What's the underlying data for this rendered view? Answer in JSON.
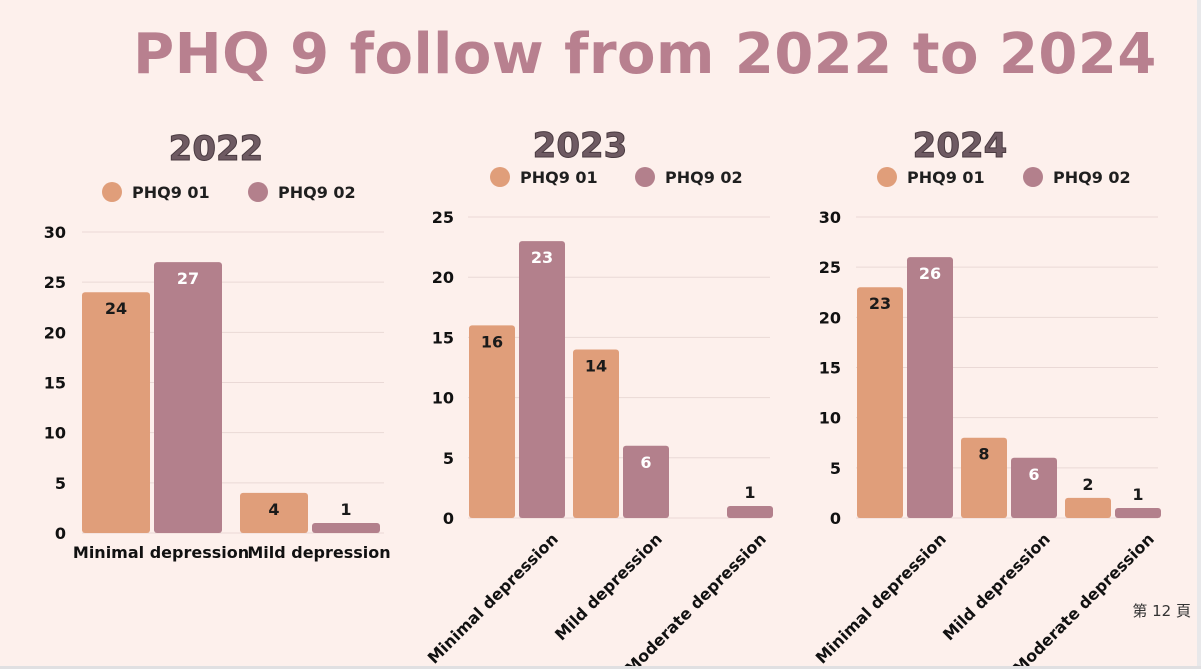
{
  "title": "PHQ 9 follow from 2022 to 2024",
  "page_number": "第 12 頁",
  "colors": {
    "series1": "#e09e7a",
    "series2": "#b3808c",
    "grid": "#ead9d6"
  },
  "chart_data": [
    {
      "type": "bar",
      "title": "2022",
      "categories": [
        "Minimal depression",
        "Mild depression"
      ],
      "series": [
        {
          "name": "PHQ9 01",
          "values": [
            24,
            4
          ]
        },
        {
          "name": "PHQ9 02",
          "values": [
            27,
            1
          ]
        }
      ],
      "ylim": [
        0,
        30
      ],
      "yticks": [
        0,
        5,
        10,
        15,
        20,
        25,
        30
      ],
      "grid": true,
      "legend": "top",
      "xlabel": "",
      "ylabel": ""
    },
    {
      "type": "bar",
      "title": "2023",
      "categories": [
        "Minimal depression",
        "Mild depression",
        "Moderate depression"
      ],
      "series": [
        {
          "name": "PHQ9 01",
          "values": [
            16,
            14,
            0
          ]
        },
        {
          "name": "PHQ9 02",
          "values": [
            23,
            6,
            1
          ]
        }
      ],
      "ylim": [
        0,
        25
      ],
      "yticks": [
        0,
        5,
        10,
        15,
        20,
        25
      ],
      "grid": true,
      "legend": "top",
      "xlabel": "",
      "ylabel": ""
    },
    {
      "type": "bar",
      "title": "2024",
      "categories": [
        "Minimal depression",
        "Mild depression",
        "Moderate depression"
      ],
      "series": [
        {
          "name": "PHQ9 01",
          "values": [
            23,
            8,
            2
          ]
        },
        {
          "name": "PHQ9 02",
          "values": [
            26,
            6,
            1
          ]
        }
      ],
      "ylim": [
        0,
        30
      ],
      "yticks": [
        0,
        5,
        10,
        15,
        20,
        25,
        30
      ],
      "grid": true,
      "legend": "top",
      "xlabel": "",
      "ylabel": ""
    }
  ]
}
